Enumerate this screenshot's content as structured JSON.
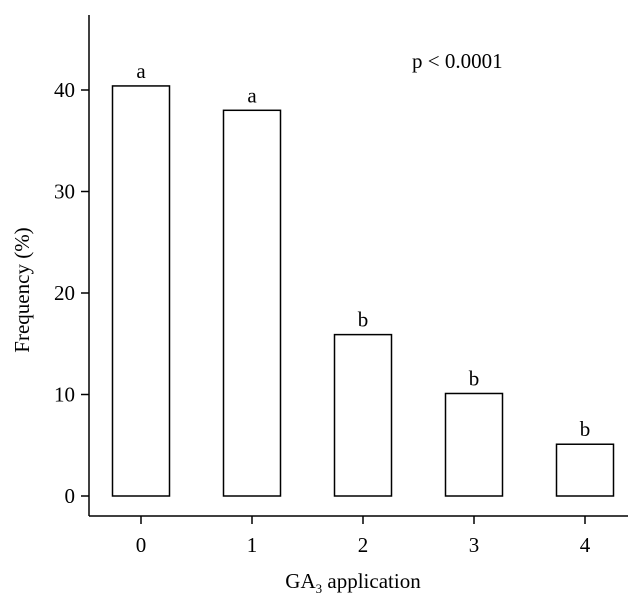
{
  "chart_data": {
    "type": "bar",
    "categories": [
      "0",
      "1",
      "2",
      "3",
      "4"
    ],
    "values": [
      40.4,
      38.0,
      15.9,
      10.1,
      5.1
    ],
    "bar_labels": [
      "a",
      "a",
      "b",
      "b",
      "b"
    ],
    "title": "",
    "xlabel": {
      "text": "GA",
      "subscript": "3",
      "suffix": " application"
    },
    "ylabel": "Frequency (%)",
    "ylim": [
      0,
      46
    ],
    "yticks": [
      "0",
      "10",
      "20",
      "30",
      "40"
    ],
    "ytick_values": [
      0,
      10,
      20,
      30,
      40
    ],
    "annotation": "p < 0.0001",
    "grid": false,
    "legend": "none",
    "bar_fill": "#ffffff",
    "bar_stroke": "#000000"
  }
}
